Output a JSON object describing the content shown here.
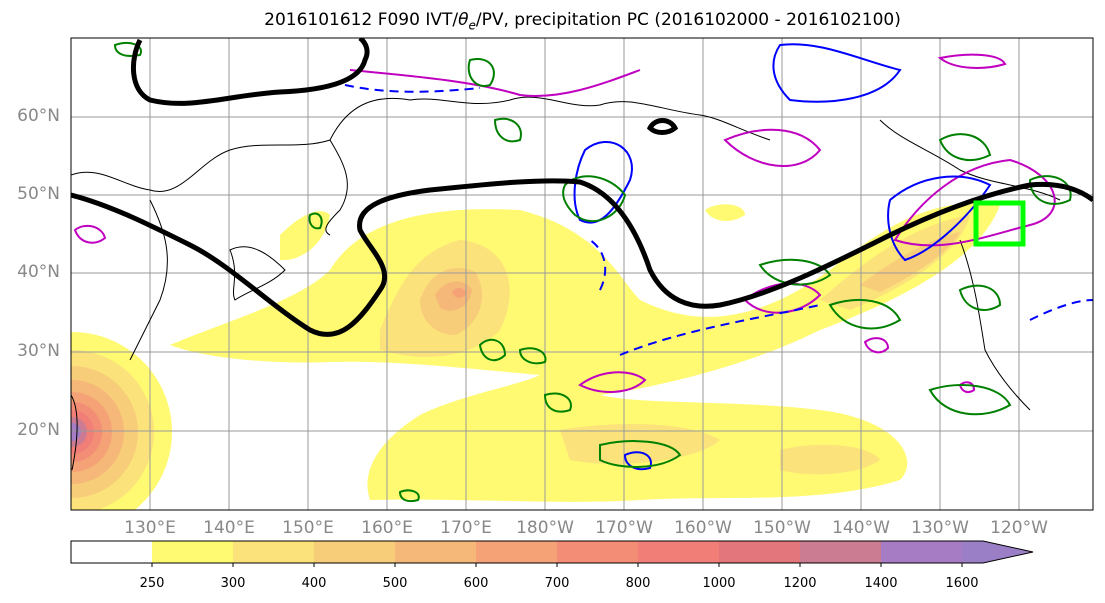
{
  "title": {
    "prefix": "2016101612 F090 IVT/",
    "theta": "θ",
    "theta_sub": "e",
    "suffix": "/PV, precipitation PC (2016102000 - 2016102100)"
  },
  "lat_labels": [
    "60°N",
    "50°N",
    "40°N",
    "30°N",
    "20°N"
  ],
  "lon_labels": [
    "130°E",
    "140°E",
    "150°E",
    "160°E",
    "170°E",
    "180°W",
    "170°W",
    "160°W",
    "150°W",
    "140°W",
    "130°W",
    "120°W"
  ],
  "colorbar": {
    "ticks": [
      "250",
      "300",
      "400",
      "500",
      "600",
      "700",
      "800",
      "1000",
      "1200",
      "1400",
      "1600"
    ],
    "levels": [
      250,
      300,
      400,
      500,
      600,
      700,
      800,
      1000,
      1200,
      1400,
      1600
    ],
    "colors": [
      "#ffffff",
      "#fffa72",
      "#fbe27a",
      "#f8cd7a",
      "#f5b878",
      "#f4a276",
      "#f38d75",
      "#f27e78",
      "#e3757d",
      "#cc7c92",
      "#a67dc4",
      "#9a7fc6"
    ]
  },
  "map_layers": {
    "ivt_shading": "IVT",
    "theta_e_contour": "theta_e",
    "pv_contours": "PV",
    "precip_pc_contours": "precipitation PC",
    "target_box": "analysis box"
  },
  "colors": {
    "jet_line": "#000000",
    "green_contour": "#008000",
    "blue_contour": "#0000ff",
    "magenta_contour": "#c000c0",
    "box": "#00ff00",
    "coast": "#000000",
    "grid": "#999999"
  }
}
